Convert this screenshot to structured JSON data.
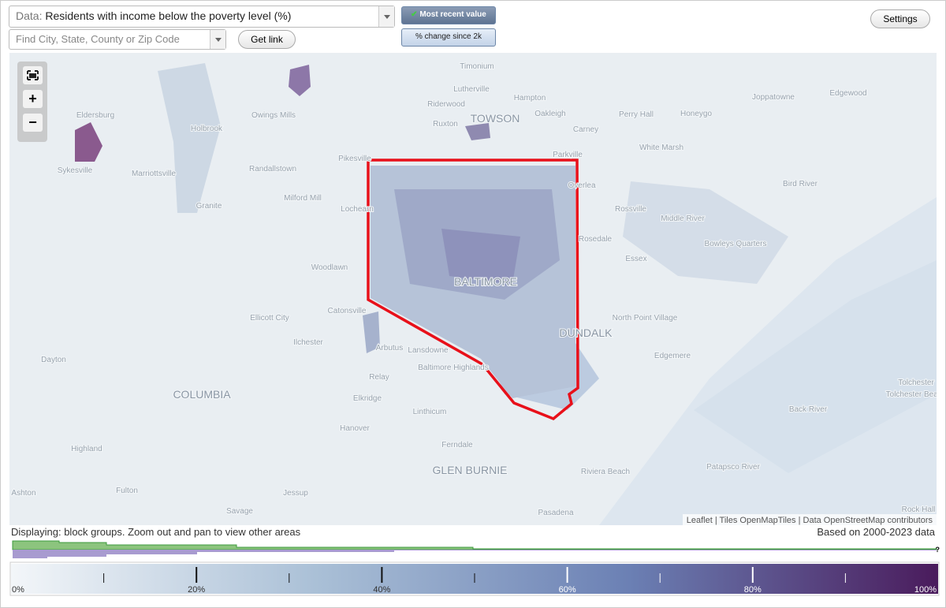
{
  "controls": {
    "data_label": "Data:",
    "data_value": "Residents with income below the poverty level (%)",
    "search_placeholder": "Find City, State, County or Zip Code",
    "get_link": "Get link",
    "modes": [
      "Most recent value",
      "% change since 2k"
    ],
    "settings": "Settings"
  },
  "map": {
    "zoom": [
      "+",
      "−"
    ],
    "places": [
      "Timonium",
      "Lutherville",
      "Hampton",
      "Riderwood",
      "Oakleigh",
      "TOWSON",
      "Ruxton",
      "Carney",
      "Perry Hall",
      "Honeygo",
      "Joppatowne",
      "Edgewood",
      "White Marsh",
      "Parkville",
      "Owings Mills",
      "Eldersburg",
      "Holbrook",
      "Randallstown",
      "Pikesville",
      "Sykesville",
      "Marriottsville",
      "Milford Mill",
      "Granite",
      "Lochearn",
      "Overlea",
      "Rossville",
      "Middle River",
      "Bird River",
      "Rosedale",
      "Bowleys Quarters",
      "Essex",
      "Woodlawn",
      "BALTIMORE",
      "Catonsville",
      "Ellicott City",
      "North Point Village",
      "DUNDALK",
      "Ilchester",
      "Arbutus",
      "Lansdowne",
      "Edgemere",
      "Dayton",
      "Baltimore Highlands",
      "Relay",
      "Tolchester",
      "Tolchester Beach",
      "COLUMBIA",
      "Elkridge",
      "Linthicum",
      "Hanover",
      "Ferndale",
      "Highland",
      "GLEN BURNIE",
      "Riviera Beach",
      "Fulton",
      "Ashton",
      "Jessup",
      "Savage",
      "Pasadena",
      "Rock Hall",
      "Back River",
      "Patapsco River"
    ],
    "attribution": "Leaflet | Tiles OpenMapTiles | Data OpenStreetMap contributors"
  },
  "status": {
    "displaying": "Displaying: block groups. Zoom out and pan to view other areas",
    "based_on": "Based on 2000-2023 data"
  },
  "histogram": {
    "help": "?"
  },
  "legend": {
    "lim": [
      0,
      100
    ],
    "colors": [
      "#f3f6f9",
      "#a9bfd6",
      "#6b80b4",
      "#4a1b5c"
    ],
    "ticks": [
      {
        "value": 0,
        "label": "0%"
      },
      {
        "value": 20,
        "label": "20%"
      },
      {
        "value": 40,
        "label": "40%"
      },
      {
        "value": 60,
        "label": "60%"
      },
      {
        "value": 80,
        "label": "80%"
      },
      {
        "value": 100,
        "label": "100%"
      }
    ],
    "minor_ticks": [
      10,
      30,
      50,
      70,
      90
    ]
  }
}
